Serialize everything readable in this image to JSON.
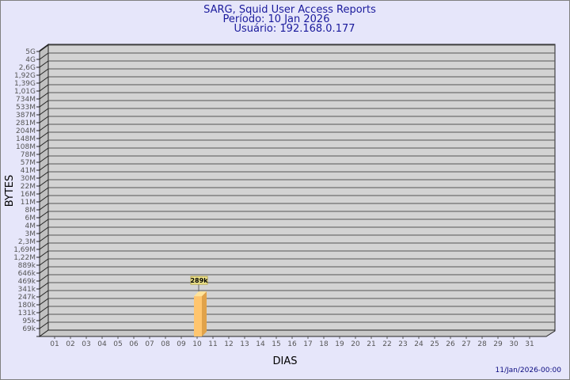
{
  "title": [
    "SARG, Squid User Access Reports",
    "Período: 10 Jan 2026",
    "Usuário: 192.168.0.177"
  ],
  "timestamp": "11/Jan/2026-00:00",
  "colors": {
    "background": "#e6e6fa",
    "wall": "#d3d3d3",
    "bar": "#ffc56e",
    "title": "#1a1a9c"
  },
  "chart_data": {
    "type": "bar",
    "xlabel": "DIAS",
    "ylabel": "BYTES",
    "y_scale": "log-like (labeled ticks)",
    "y_tick_labels": [
      "69k",
      "95k",
      "131k",
      "180k",
      "247k",
      "341k",
      "469k",
      "646k",
      "889k",
      "1,22M",
      "1,69M",
      "2,3M",
      "3M",
      "4M",
      "6M",
      "8M",
      "11M",
      "16M",
      "22M",
      "30M",
      "41M",
      "57M",
      "78M",
      "108M",
      "148M",
      "204M",
      "281M",
      "387M",
      "533M",
      "734M",
      "1,01G",
      "1,39G",
      "1,92G",
      "2,6G",
      "4G",
      "5G"
    ],
    "y_tick_values": [
      69000,
      95000,
      131000,
      180000,
      247000,
      341000,
      469000,
      646000,
      889000,
      1220000,
      1690000,
      2300000,
      3000000,
      4000000,
      6000000,
      8000000,
      11000000,
      16000000,
      22000000,
      30000000,
      41000000,
      57000000,
      78000000,
      108000000,
      148000000,
      204000000,
      281000000,
      387000000,
      533000000,
      734000000,
      1010000000,
      1390000000,
      1920000000,
      2600000000,
      4000000000,
      5000000000
    ],
    "categories": [
      "01",
      "02",
      "03",
      "04",
      "05",
      "06",
      "07",
      "08",
      "09",
      "10",
      "11",
      "12",
      "13",
      "14",
      "15",
      "16",
      "17",
      "18",
      "19",
      "20",
      "21",
      "22",
      "23",
      "24",
      "25",
      "26",
      "27",
      "28",
      "29",
      "30",
      "31"
    ],
    "values": [
      null,
      null,
      null,
      null,
      null,
      null,
      null,
      null,
      null,
      289000,
      null,
      null,
      null,
      null,
      null,
      null,
      null,
      null,
      null,
      null,
      null,
      null,
      null,
      null,
      null,
      null,
      null,
      null,
      null,
      null,
      null
    ],
    "data_labels": {
      "10": "289k"
    },
    "grid": true
  }
}
